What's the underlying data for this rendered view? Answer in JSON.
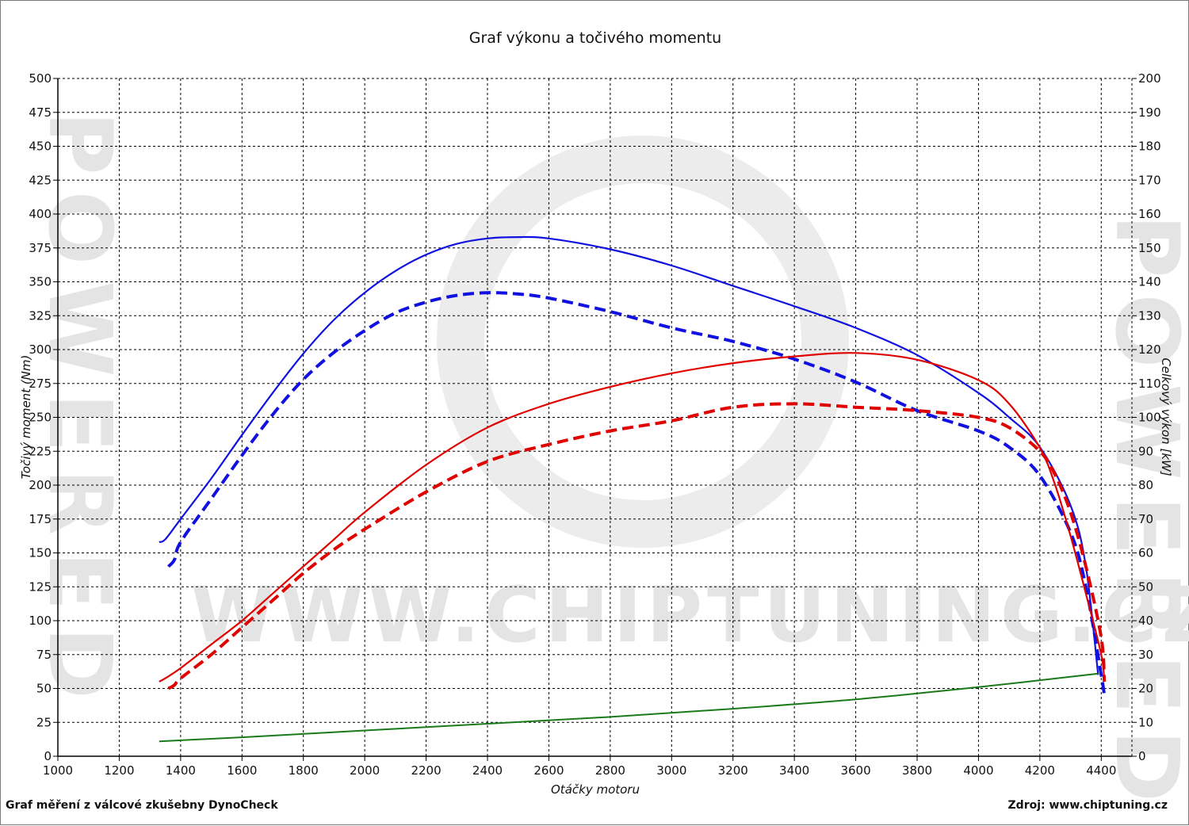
{
  "chart_data": {
    "type": "line",
    "title": "Graf výkonu a točivého momentu",
    "xlabel": "Otáčky motoru",
    "ylabel_left": "Točivý moment (Nm)",
    "ylabel_right": "Celkový výkon [kW]",
    "xlim": [
      1000,
      4500
    ],
    "ylim_left": [
      0,
      500
    ],
    "ylim_right": [
      0,
      200
    ],
    "x_ticks": [
      1000,
      1200,
      1400,
      1600,
      1800,
      2000,
      2200,
      2400,
      2600,
      2800,
      3000,
      3200,
      3400,
      3600,
      3800,
      4000,
      4200,
      4400
    ],
    "y_ticks_left": [
      0,
      25,
      50,
      75,
      100,
      125,
      150,
      175,
      200,
      225,
      250,
      275,
      300,
      325,
      350,
      375,
      400,
      425,
      450,
      475,
      500
    ],
    "y_ticks_right": [
      0,
      10,
      20,
      30,
      40,
      50,
      60,
      70,
      80,
      90,
      100,
      110,
      120,
      130,
      140,
      150,
      160,
      170,
      180,
      190,
      200
    ],
    "grid": true,
    "series": [
      {
        "color": "#1010e0",
        "dash": false,
        "axis": "left",
        "x": [
          1330,
          1350,
          1400,
          1500,
          1600,
          1700,
          1800,
          1900,
          2000,
          2100,
          2200,
          2300,
          2400,
          2500,
          2600,
          2800,
          3000,
          3200,
          3400,
          3600,
          3800,
          4000,
          4100,
          4200,
          4300,
          4350,
          4390
        ],
        "y": [
          158,
          160,
          175,
          205,
          237,
          268,
          297,
          322,
          342,
          358,
          370,
          378,
          382,
          383,
          382,
          374,
          362,
          347,
          332,
          316,
          296,
          268,
          250,
          228,
          185,
          140,
          60
        ]
      },
      {
        "color": "#1010e0",
        "dash": true,
        "axis": "left",
        "x": [
          1360,
          1380,
          1400,
          1500,
          1600,
          1700,
          1800,
          1900,
          2000,
          2100,
          2200,
          2300,
          2400,
          2500,
          2600,
          2800,
          3000,
          3200,
          3400,
          3600,
          3800,
          4000,
          4100,
          4200,
          4300,
          4350,
          4400,
          4410
        ],
        "y": [
          140,
          145,
          158,
          190,
          222,
          252,
          278,
          298,
          314,
          327,
          335,
          340,
          342,
          341,
          338,
          328,
          316,
          306,
          293,
          276,
          255,
          240,
          228,
          207,
          165,
          125,
          60,
          45
        ]
      },
      {
        "color": "#e00000",
        "dash": false,
        "axis": "right",
        "x": [
          1330,
          1350,
          1400,
          1500,
          1600,
          1700,
          1800,
          1900,
          2000,
          2200,
          2400,
          2600,
          2800,
          3000,
          3200,
          3400,
          3600,
          3800,
          4000,
          4100,
          4200,
          4250,
          4300,
          4350,
          4400,
          4410
        ],
        "y": [
          22,
          23,
          26,
          33,
          40,
          48,
          56,
          64,
          72,
          86,
          97,
          104,
          109,
          113,
          116,
          118,
          119,
          117,
          111,
          104,
          91,
          80,
          65,
          48,
          30,
          22
        ]
      },
      {
        "color": "#e00000",
        "dash": true,
        "axis": "right",
        "x": [
          1360,
          1380,
          1400,
          1500,
          1600,
          1700,
          1800,
          1900,
          2000,
          2200,
          2400,
          2600,
          2800,
          3000,
          3200,
          3400,
          3600,
          3800,
          4000,
          4100,
          4200,
          4250,
          4300,
          4350,
          4400,
          4410
        ],
        "y": [
          20,
          21,
          23,
          30,
          38,
          46,
          54,
          61,
          67,
          78,
          87,
          92,
          96,
          99,
          103,
          104,
          103,
          102,
          100,
          97,
          90,
          83,
          72,
          56,
          35,
          22
        ]
      },
      {
        "color": "#1a7a1a",
        "dash": false,
        "axis": "left",
        "x": [
          1330,
          1600,
          2000,
          2400,
          2800,
          3200,
          3600,
          4000,
          4390
        ],
        "y": [
          11,
          14,
          19,
          24,
          29,
          35,
          42,
          51,
          61
        ]
      }
    ]
  },
  "watermark": {
    "url": "WWW.CHIPTUNING.CZ",
    "side": "POWERED"
  },
  "footer": {
    "left": "Graf měření z válcové zkušebny DynoCheck",
    "right": "Zdroj: www.chiptuning.cz"
  }
}
